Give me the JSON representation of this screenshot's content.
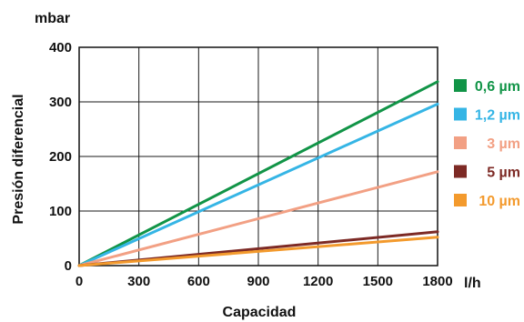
{
  "chart_data": {
    "type": "line",
    "xlabel": "Capacidad",
    "ylabel": "Presión diferencial",
    "x_unit": "l/h",
    "y_unit": "mbar",
    "xlim": [
      0,
      1800
    ],
    "ylim": [
      0,
      400
    ],
    "x_ticks": [
      0,
      300,
      600,
      900,
      1200,
      1500,
      1800
    ],
    "y_ticks": [
      0,
      100,
      200,
      300,
      400
    ],
    "grid": true,
    "legend_position": "right",
    "series": [
      {
        "name": "0,6 µm",
        "color": "#119447",
        "x": [
          0,
          1800
        ],
        "y": [
          0,
          337
        ]
      },
      {
        "name": "1,2 µm",
        "color": "#35b5e5",
        "x": [
          0,
          1800
        ],
        "y": [
          0,
          296
        ]
      },
      {
        "name": "3 µm",
        "color": "#f2a084",
        "x": [
          0,
          1800
        ],
        "y": [
          0,
          172
        ]
      },
      {
        "name": "5 µm",
        "color": "#7d2a25",
        "x": [
          0,
          1800
        ],
        "y": [
          0,
          62
        ]
      },
      {
        "name": "10 µm",
        "color": "#f39a2d",
        "x": [
          0,
          1800
        ],
        "y": [
          0,
          52
        ]
      }
    ]
  }
}
